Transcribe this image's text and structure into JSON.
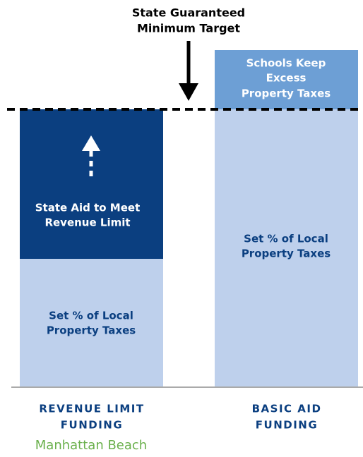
{
  "header": {
    "title": [
      "State Guaranteed",
      "Minimum Target"
    ]
  },
  "columns": [
    {
      "top": [
        "State Aid to Meet",
        "Revenue Limit"
      ],
      "bottom": [
        "Set % of Local",
        "Property Taxes"
      ],
      "label": [
        "REVENUE LIMIT",
        "FUNDING"
      ],
      "place": "Manhattan Beach"
    },
    {
      "top": [
        "Schools Keep",
        "Excess",
        "Property Taxes"
      ],
      "bottom": [
        "Set % of Local",
        "Property Taxes"
      ],
      "label": [
        "BASIC AID",
        "FUNDING"
      ]
    }
  ]
}
